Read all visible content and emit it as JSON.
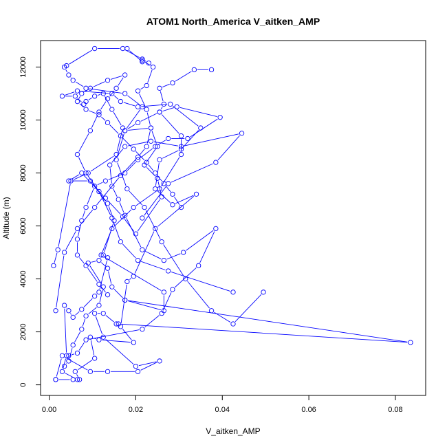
{
  "chart_data": {
    "type": "line",
    "title": "ATOM1 North_America V_aitken_AMP",
    "xlabel": "V_aitken_AMP",
    "ylabel": "Altitude (m)",
    "xlim": [
      -0.002,
      0.087
    ],
    "ylim": [
      -400,
      13000
    ],
    "xticks": [
      "0.00",
      "0.02",
      "0.04",
      "0.06",
      "0.08"
    ],
    "xtick_values": [
      0,
      0.02,
      0.04,
      0.06,
      0.08
    ],
    "yticks": [
      "0",
      "2000",
      "4000",
      "6000",
      "8000",
      "10000",
      "12000"
    ],
    "ytick_values": [
      0,
      2000,
      4000,
      6000,
      8000,
      10000,
      12000
    ],
    "grid": false,
    "marker": "open-circle",
    "color": "#0000ff",
    "series": [
      {
        "values": [
          [
            0.0015,
            200
          ],
          [
            0.0055,
            200
          ],
          [
            0.0065,
            200
          ],
          [
            0.003,
            500
          ],
          [
            0.004,
            1100
          ],
          [
            0.0035,
            3000
          ],
          [
            0.0045,
            2800
          ],
          [
            0.0055,
            2550
          ],
          [
            0.0075,
            2850
          ],
          [
            0.0105,
            3350
          ],
          [
            0.0115,
            3500
          ],
          [
            0.0135,
            4800
          ],
          [
            0.0125,
            4900
          ],
          [
            0.015,
            6200
          ],
          [
            0.0135,
            6850
          ],
          [
            0.0095,
            7700
          ],
          [
            0.0045,
            7700
          ],
          [
            0.0075,
            8000
          ],
          [
            0.013,
            7050
          ],
          [
            0.017,
            6350
          ],
          [
            0.02,
            5700
          ],
          [
            0.026,
            7100
          ],
          [
            0.025,
            7800
          ],
          [
            0.022,
            8300
          ],
          [
            0.025,
            9000
          ],
          [
            0.0235,
            9700
          ],
          [
            0.0175,
            9600
          ],
          [
            0.0215,
            10500
          ],
          [
            0.0175,
            11000
          ],
          [
            0.0085,
            11200
          ],
          [
            0.0055,
            11500
          ],
          [
            0.0045,
            11700
          ],
          [
            0.0035,
            12000
          ],
          [
            0.004,
            12050
          ],
          [
            0.0105,
            12700
          ],
          [
            0.017,
            12700
          ],
          [
            0.0215,
            12300
          ],
          [
            0.023,
            12150
          ],
          [
            0.0215,
            12200
          ],
          [
            0.018,
            12700
          ]
        ]
      },
      {
        "values": [
          [
            0.0015,
            200
          ],
          [
            0.003,
            1100
          ],
          [
            0.0095,
            500
          ],
          [
            0.0135,
            500
          ],
          [
            0.0205,
            500
          ],
          [
            0.0255,
            900
          ],
          [
            0.02,
            700
          ],
          [
            0.0125,
            1800
          ],
          [
            0.0105,
            2700
          ],
          [
            0.0125,
            2700
          ],
          [
            0.0155,
            2300
          ],
          [
            0.016,
            2300
          ],
          [
            0.0835,
            1600
          ],
          [
            0.0175,
            3200
          ],
          [
            0.0265,
            2800
          ],
          [
            0.0265,
            3500
          ],
          [
            0.012,
            4900
          ],
          [
            0.0145,
            5900
          ],
          [
            0.0195,
            6700
          ],
          [
            0.0255,
            7400
          ],
          [
            0.0305,
            8700
          ],
          [
            0.0305,
            9400
          ],
          [
            0.0255,
            10300
          ],
          [
            0.0265,
            10600
          ],
          [
            0.0255,
            11200
          ],
          [
            0.0285,
            11400
          ],
          [
            0.0335,
            11900
          ],
          [
            0.0375,
            11900
          ]
        ]
      },
      {
        "values": [
          [
            0.001,
            4500
          ],
          [
            0.002,
            5100
          ],
          [
            0.005,
            7700
          ],
          [
            0.009,
            8000
          ],
          [
            0.0155,
            8700
          ],
          [
            0.017,
            9700
          ],
          [
            0.0145,
            10400
          ],
          [
            0.0125,
            11000
          ],
          [
            0.0105,
            10900
          ],
          [
            0.0085,
            10700
          ],
          [
            0.008,
            10600
          ],
          [
            0.006,
            10900
          ],
          [
            0.003,
            10900
          ],
          [
            0.0065,
            11100
          ],
          [
            0.0145,
            11000
          ],
          [
            0.0165,
            10700
          ],
          [
            0.0205,
            10500
          ],
          [
            0.028,
            10600
          ],
          [
            0.035,
            9700
          ],
          [
            0.0305,
            8900
          ],
          [
            0.0255,
            8500
          ],
          [
            0.0245,
            7400
          ],
          [
            0.0285,
            6800
          ],
          [
            0.034,
            7200
          ],
          [
            0.0245,
            5900
          ],
          [
            0.0195,
            4100
          ],
          [
            0.018,
            3900
          ],
          [
            0.0165,
            2200
          ],
          [
            0.0195,
            1600
          ],
          [
            0.0115,
            1700
          ],
          [
            0.0095,
            1800
          ],
          [
            0.0105,
            1000
          ],
          [
            0.006,
            500
          ],
          [
            0.007,
            200
          ]
        ]
      },
      {
        "values": [
          [
            0.0015,
            2800
          ],
          [
            0.0035,
            5000
          ],
          [
            0.0065,
            5900
          ],
          [
            0.0105,
            6700
          ],
          [
            0.0165,
            7900
          ],
          [
            0.0205,
            8600
          ],
          [
            0.0225,
            9000
          ],
          [
            0.0235,
            9700
          ],
          [
            0.0225,
            10400
          ],
          [
            0.0205,
            11100
          ],
          [
            0.0225,
            11300
          ],
          [
            0.024,
            12000
          ],
          [
            0.0215,
            12250
          ]
        ]
      },
      {
        "values": [
          [
            0.0215,
            6300
          ],
          [
            0.0275,
            7600
          ],
          [
            0.0385,
            8400
          ],
          [
            0.0445,
            9500
          ],
          [
            0.0305,
            9000
          ],
          [
            0.0235,
            9200
          ],
          [
            0.0175,
            9000
          ],
          [
            0.014,
            8300
          ],
          [
            0.0145,
            7500
          ],
          [
            0.016,
            7000
          ],
          [
            0.0175,
            6400
          ],
          [
            0.0215,
            5100
          ],
          [
            0.0265,
            4700
          ],
          [
            0.031,
            5000
          ],
          [
            0.0385,
            5900
          ],
          [
            0.0345,
            4500
          ],
          [
            0.0285,
            3600
          ],
          [
            0.026,
            2700
          ],
          [
            0.0215,
            2100
          ],
          [
            0.0085,
            1700
          ],
          [
            0.0065,
            1200
          ],
          [
            0.0045,
            1100
          ]
        ]
      },
      {
        "values": [
          [
            0.0495,
            3500
          ],
          [
            0.0425,
            2300
          ],
          [
            0.0375,
            2800
          ],
          [
            0.0315,
            4000
          ],
          [
            0.026,
            5400
          ],
          [
            0.022,
            6700
          ],
          [
            0.018,
            7400
          ],
          [
            0.0155,
            8500
          ],
          [
            0.0175,
            9600
          ],
          [
            0.0205,
            9900
          ],
          [
            0.0255,
            10300
          ],
          [
            0.0295,
            10500
          ],
          [
            0.0395,
            10100
          ],
          [
            0.032,
            9300
          ],
          [
            0.0275,
            9300
          ],
          [
            0.0245,
            9000
          ],
          [
            0.0205,
            8500
          ],
          [
            0.0175,
            8000
          ],
          [
            0.013,
            7700
          ],
          [
            0.0105,
            7500
          ],
          [
            0.0085,
            6700
          ],
          [
            0.0075,
            6200
          ],
          [
            0.0065,
            5500
          ],
          [
            0.0065,
            4900
          ],
          [
            0.0085,
            4500
          ],
          [
            0.0115,
            3800
          ],
          [
            0.0135,
            3400
          ]
        ]
      },
      {
        "values": [
          [
            0.0425,
            3500
          ],
          [
            0.0275,
            4300
          ],
          [
            0.0205,
            4700
          ],
          [
            0.0165,
            5400
          ],
          [
            0.0145,
            6300
          ],
          [
            0.0115,
            7300
          ],
          [
            0.0085,
            8000
          ],
          [
            0.0065,
            8700
          ],
          [
            0.0095,
            9600
          ],
          [
            0.0115,
            10300
          ],
          [
            0.0135,
            10800
          ],
          [
            0.0155,
            11200
          ],
          [
            0.0175,
            11700
          ],
          [
            0.0135,
            11500
          ],
          [
            0.0095,
            11200
          ],
          [
            0.0075,
            11000
          ],
          [
            0.0065,
            10700
          ],
          [
            0.0085,
            10400
          ],
          [
            0.0115,
            10200
          ],
          [
            0.0135,
            9900
          ],
          [
            0.0165,
            9400
          ],
          [
            0.0195,
            8900
          ],
          [
            0.0225,
            8400
          ],
          [
            0.0245,
            8000
          ],
          [
            0.0265,
            7600
          ],
          [
            0.0285,
            7200
          ],
          [
            0.0305,
            6700
          ]
        ]
      },
      {
        "values": [
          [
            0.0175,
            3200
          ],
          [
            0.0145,
            3700
          ],
          [
            0.0135,
            4400
          ],
          [
            0.0115,
            4700
          ],
          [
            0.009,
            4600
          ],
          [
            0.0125,
            3700
          ],
          [
            0.0115,
            3000
          ],
          [
            0.0085,
            2600
          ],
          [
            0.0075,
            2100
          ],
          [
            0.0055,
            1500
          ],
          [
            0.0045,
            900
          ],
          [
            0.0035,
            700
          ]
        ]
      }
    ]
  }
}
